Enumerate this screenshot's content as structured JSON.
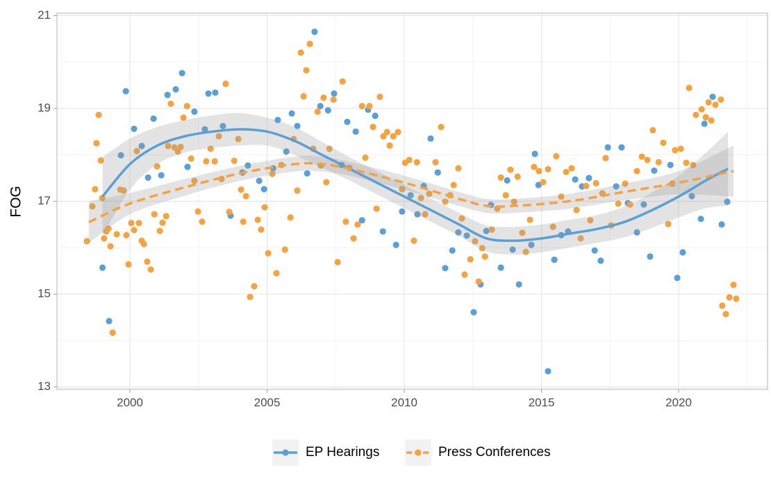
{
  "chart_data": {
    "type": "scatter",
    "y_label": "FOG",
    "xlim": [
      1997.34,
      2023.24
    ],
    "ylim": [
      12.95,
      21.05
    ],
    "xticks": [
      2000,
      2005,
      2010,
      2015,
      2020
    ],
    "yticks": [
      13,
      15,
      17,
      19,
      21
    ],
    "xminorticks": [
      1997.5,
      2002.5,
      2007.5,
      2012.5,
      2017.5,
      2022.5
    ],
    "yminorticks": [
      14,
      16,
      18,
      20
    ],
    "grid": true,
    "legend": "bottom",
    "band_color": "#9a9a9a",
    "series": [
      {
        "name": "EP Hearings",
        "color": "#5a9fd6",
        "dash": false,
        "x": [
          1999.0,
          1999.24,
          1999.85,
          1999.67,
          2000.15,
          2000.43,
          2000.66,
          2000.86,
          2001.14,
          2001.37,
          2001.67,
          2001.9,
          2002.1,
          2002.35,
          2002.73,
          2002.86,
          2003.11,
          2003.39,
          2003.67,
          2004.1,
          2004.3,
          2004.71,
          2004.89,
          2005.22,
          2005.39,
          2005.7,
          2005.9,
          2006.1,
          2006.46,
          2006.73,
          2006.94,
          2007.22,
          2007.44,
          2007.72,
          2007.92,
          2008.23,
          2008.46,
          2008.68,
          2008.94,
          2009.22,
          2009.7,
          2009.92,
          2010.23,
          2010.48,
          2010.71,
          2010.96,
          2011.22,
          2011.49,
          2011.75,
          2011.97,
          2012.28,
          2012.53,
          2012.78,
          2012.99,
          2013.16,
          2013.52,
          2013.75,
          2013.95,
          2014.18,
          2014.63,
          2014.76,
          2014.89,
          2015.24,
          2015.47,
          2015.72,
          2015.97,
          2016.23,
          2016.48,
          2016.73,
          2016.94,
          2017.16,
          2017.42,
          2017.72,
          2017.92,
          2018.15,
          2018.48,
          2018.73,
          2018.96,
          2019.11,
          2019.7,
          2019.95,
          2020.15,
          2020.48,
          2020.81,
          2020.94,
          2021.24,
          2021.57,
          2021.77
        ],
        "values": [
          15.57,
          14.42,
          19.37,
          17.99,
          18.56,
          18.19,
          17.51,
          18.78,
          17.56,
          19.29,
          19.41,
          19.76,
          17.74,
          18.93,
          18.55,
          19.32,
          19.34,
          18.62,
          16.69,
          17.62,
          17.77,
          17.44,
          17.26,
          17.71,
          18.75,
          18.07,
          18.89,
          18.62,
          17.6,
          20.65,
          19.05,
          18.96,
          19.32,
          17.78,
          18.71,
          18.5,
          16.59,
          18.97,
          18.84,
          16.35,
          16.06,
          16.78,
          17.13,
          16.72,
          17.33,
          18.35,
          17.62,
          15.56,
          15.94,
          16.33,
          16.26,
          14.61,
          15.21,
          16.36,
          16.92,
          15.57,
          17.45,
          15.96,
          15.21,
          16.06,
          18.02,
          17.35,
          13.34,
          15.74,
          16.27,
          16.35,
          17.47,
          17.32,
          17.5,
          15.94,
          15.72,
          18.16,
          17.32,
          18.16,
          16.96,
          16.33,
          16.93,
          15.81,
          17.66,
          17.78,
          15.35,
          15.9,
          17.11,
          16.62,
          18.67,
          19.25,
          16.5,
          16.99
        ],
        "fit": {
          "x": [
            1999.0,
            2000,
            2001,
            2002,
            2003,
            2004,
            2005,
            2006,
            2007,
            2008,
            2009,
            2010,
            2011,
            2012,
            2013,
            2014,
            2015,
            2016,
            2017,
            2018,
            2019,
            2020,
            2021,
            2021.8
          ],
          "values": [
            17.1,
            17.8,
            18.2,
            18.4,
            18.5,
            18.55,
            18.5,
            18.3,
            18.0,
            17.7,
            17.4,
            17.1,
            16.8,
            16.5,
            16.2,
            16.15,
            16.2,
            16.3,
            16.4,
            16.55,
            16.8,
            17.1,
            17.45,
            17.7
          ],
          "lower": [
            16.25,
            17.25,
            17.8,
            18.05,
            18.15,
            18.2,
            18.2,
            18.0,
            17.72,
            17.45,
            17.15,
            16.85,
            16.55,
            16.25,
            15.92,
            15.85,
            15.9,
            16.0,
            16.1,
            16.22,
            16.42,
            16.65,
            16.85,
            16.9
          ],
          "upper": [
            17.95,
            18.35,
            18.6,
            18.75,
            18.85,
            18.9,
            18.8,
            18.6,
            18.28,
            17.95,
            17.65,
            17.35,
            17.05,
            16.75,
            16.48,
            16.45,
            16.5,
            16.6,
            16.7,
            16.88,
            17.18,
            17.55,
            18.05,
            18.5
          ]
        }
      },
      {
        "name": "Press Conferences",
        "color": "#f4a340",
        "dash": true,
        "x": [
          1998.43,
          1998.63,
          1998.73,
          1998.78,
          1998.86,
          1998.94,
          1998.99,
          1999.06,
          1999.14,
          1999.22,
          1999.29,
          1999.37,
          1999.52,
          1999.65,
          1999.77,
          1999.87,
          1999.95,
          2000.05,
          2000.15,
          2000.25,
          2000.33,
          2000.43,
          2000.51,
          2000.63,
          2000.76,
          2000.89,
          2000.99,
          2001.09,
          2001.19,
          2001.32,
          2001.39,
          2001.49,
          2001.62,
          2001.75,
          2001.85,
          2001.95,
          2002.08,
          2002.23,
          2002.35,
          2002.48,
          2002.63,
          2002.78,
          2002.94,
          2003.09,
          2003.24,
          2003.34,
          2003.49,
          2003.62,
          2003.8,
          2003.95,
          2004.05,
          2004.13,
          2004.23,
          2004.38,
          2004.53,
          2004.66,
          2004.78,
          2004.91,
          2005.04,
          2005.19,
          2005.34,
          2005.52,
          2005.65,
          2005.85,
          2005.97,
          2006.1,
          2006.23,
          2006.33,
          2006.43,
          2006.56,
          2006.68,
          2006.84,
          2006.96,
          2007.06,
          2007.16,
          2007.27,
          2007.42,
          2007.57,
          2007.75,
          2007.87,
          2008.0,
          2008.15,
          2008.3,
          2008.46,
          2008.58,
          2008.73,
          2008.86,
          2008.99,
          2009.11,
          2009.24,
          2009.37,
          2009.47,
          2009.6,
          2009.77,
          2009.92,
          2010.03,
          2010.18,
          2010.35,
          2010.46,
          2010.61,
          2010.76,
          2010.91,
          2011.14,
          2011.34,
          2011.49,
          2011.67,
          2011.8,
          2011.97,
          2012.1,
          2012.2,
          2012.41,
          2012.58,
          2012.71,
          2012.84,
          2012.94,
          2013.19,
          2013.39,
          2013.52,
          2013.7,
          2013.87,
          2014.0,
          2014.13,
          2014.3,
          2014.43,
          2014.58,
          2014.73,
          2014.91,
          2015.06,
          2015.24,
          2015.42,
          2015.54,
          2015.72,
          2015.9,
          2016.1,
          2016.28,
          2016.43,
          2016.63,
          2016.78,
          2016.99,
          2017.22,
          2017.34,
          2017.54,
          2017.8,
          2018.05,
          2018.23,
          2018.48,
          2018.66,
          2018.86,
          2019.06,
          2019.27,
          2019.44,
          2019.62,
          2019.77,
          2019.87,
          2020.08,
          2020.28,
          2020.38,
          2020.53,
          2020.63,
          2020.84,
          2020.99,
          2021.09,
          2021.19,
          2021.34,
          2021.54,
          2021.59,
          2021.72,
          2021.85,
          2022.0,
          2022.1
        ],
        "values": [
          16.14,
          16.89,
          17.26,
          18.25,
          18.86,
          17.88,
          17.07,
          16.2,
          16.35,
          16.41,
          16.03,
          14.17,
          16.29,
          17.25,
          17.23,
          16.27,
          15.64,
          16.53,
          16.38,
          18.08,
          16.53,
          16.15,
          16.08,
          15.7,
          15.53,
          16.72,
          17.75,
          16.36,
          16.54,
          16.68,
          18.19,
          19.1,
          18.16,
          18.07,
          18.17,
          18.8,
          19.05,
          17.92,
          17.44,
          16.78,
          16.56,
          17.86,
          18.13,
          17.86,
          18.4,
          17.48,
          19.53,
          16.77,
          17.87,
          18.34,
          17.25,
          16.56,
          17.11,
          14.94,
          15.17,
          16.6,
          16.39,
          16.87,
          15.88,
          17.59,
          15.45,
          17.78,
          15.96,
          16.65,
          18.34,
          17.23,
          20.2,
          19.26,
          19.82,
          20.39,
          18.13,
          18.93,
          17.77,
          19.23,
          17.41,
          18.13,
          19.19,
          15.69,
          19.58,
          16.56,
          17.72,
          16.2,
          16.5,
          19.05,
          17.94,
          19.05,
          18.6,
          16.84,
          19.25,
          18.4,
          18.49,
          18.2,
          18.4,
          18.49,
          17.26,
          17.83,
          17.89,
          16.15,
          17.84,
          17.07,
          16.72,
          17.16,
          17.84,
          18.6,
          16.99,
          17.13,
          17.35,
          17.71,
          16.63,
          15.42,
          15.75,
          16.14,
          15.27,
          15.99,
          15.81,
          16.39,
          16.84,
          17.51,
          17.13,
          17.68,
          16.99,
          17.53,
          16.32,
          15.91,
          16.6,
          17.74,
          17.65,
          17.41,
          17.69,
          16.45,
          17.97,
          17.1,
          17.63,
          17.71,
          16.81,
          16.2,
          17.33,
          16.59,
          17.39,
          17.17,
          17.93,
          16.48,
          16.95,
          17.38,
          16.93,
          17.65,
          17.96,
          17.89,
          18.53,
          17.84,
          18.26,
          16.51,
          17.38,
          18.1,
          18.13,
          17.83,
          19.44,
          17.78,
          18.86,
          18.98,
          18.81,
          19.13,
          18.74,
          19.08,
          19.19,
          14.75,
          14.57,
          14.93,
          15.2,
          14.9
        ],
        "fit": {
          "x": [
            1998.5,
            2000,
            2002,
            2004,
            2006,
            2007,
            2008,
            2010,
            2012,
            2013,
            2014,
            2016,
            2018,
            2020,
            2022
          ],
          "values": [
            16.55,
            16.95,
            17.3,
            17.6,
            17.8,
            17.8,
            17.7,
            17.4,
            17.05,
            16.9,
            16.9,
            17.0,
            17.2,
            17.4,
            17.65
          ],
          "lower": [
            16.1,
            16.72,
            17.12,
            17.44,
            17.64,
            17.64,
            17.55,
            17.25,
            16.9,
            16.75,
            16.75,
            16.84,
            17.02,
            17.15,
            17.1
          ],
          "upper": [
            17.0,
            17.18,
            17.48,
            17.76,
            17.96,
            17.96,
            17.85,
            17.55,
            17.2,
            17.05,
            17.05,
            17.16,
            17.38,
            17.65,
            18.2
          ]
        }
      }
    ]
  }
}
